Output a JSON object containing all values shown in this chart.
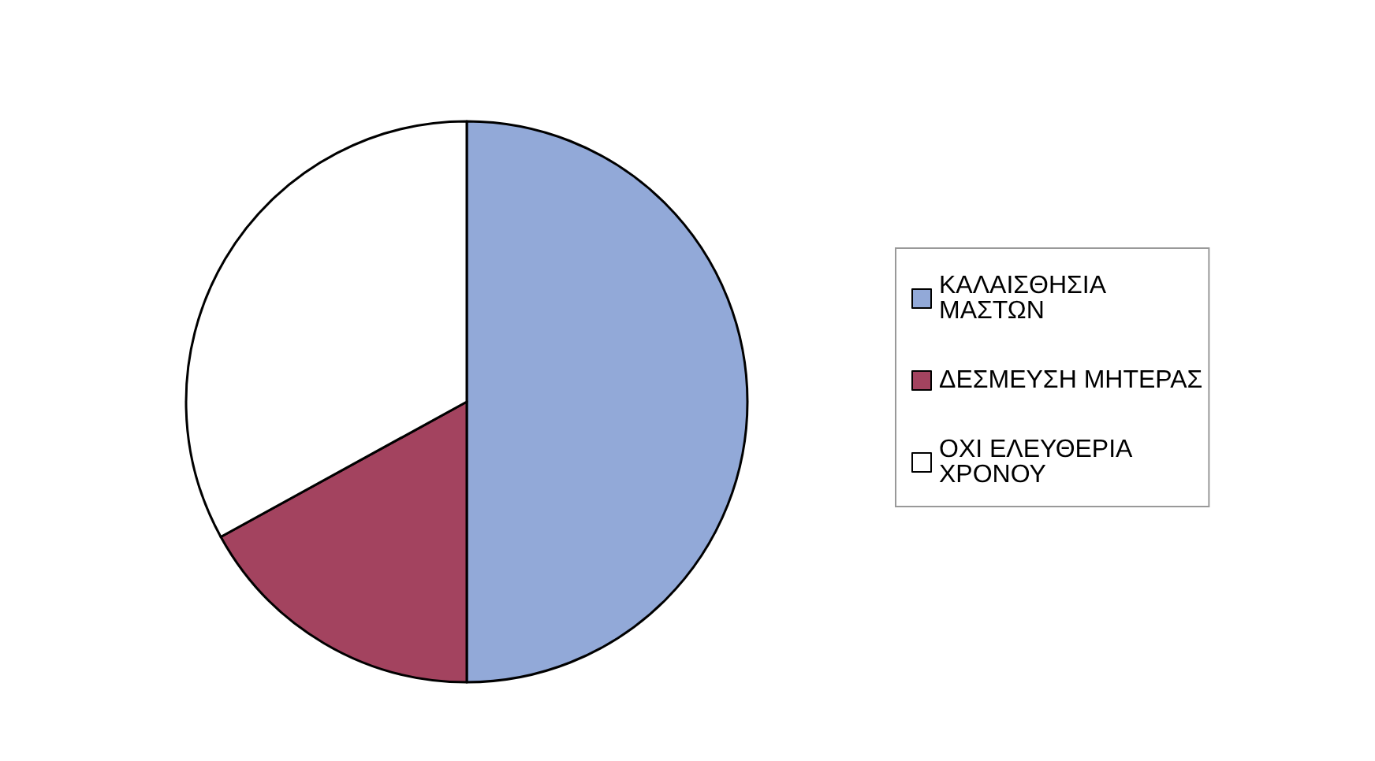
{
  "chart_data": {
    "type": "pie",
    "categories": [
      "ΚΑΛΑΙΣΘΗΣΙΑ ΜΑΣΤΩΝ",
      "ΔΕΣΜΕΥΣΗ ΜΗΤΕΡΑΣ",
      "ΟΧΙ ΕΛΕΥΘΕΡΙΑ ΧΡΟΝΟΥ"
    ],
    "values": [
      50,
      17,
      33
    ],
    "colors": [
      "#92a9d8",
      "#a3435f",
      "#ffffff"
    ],
    "legend": "right"
  }
}
